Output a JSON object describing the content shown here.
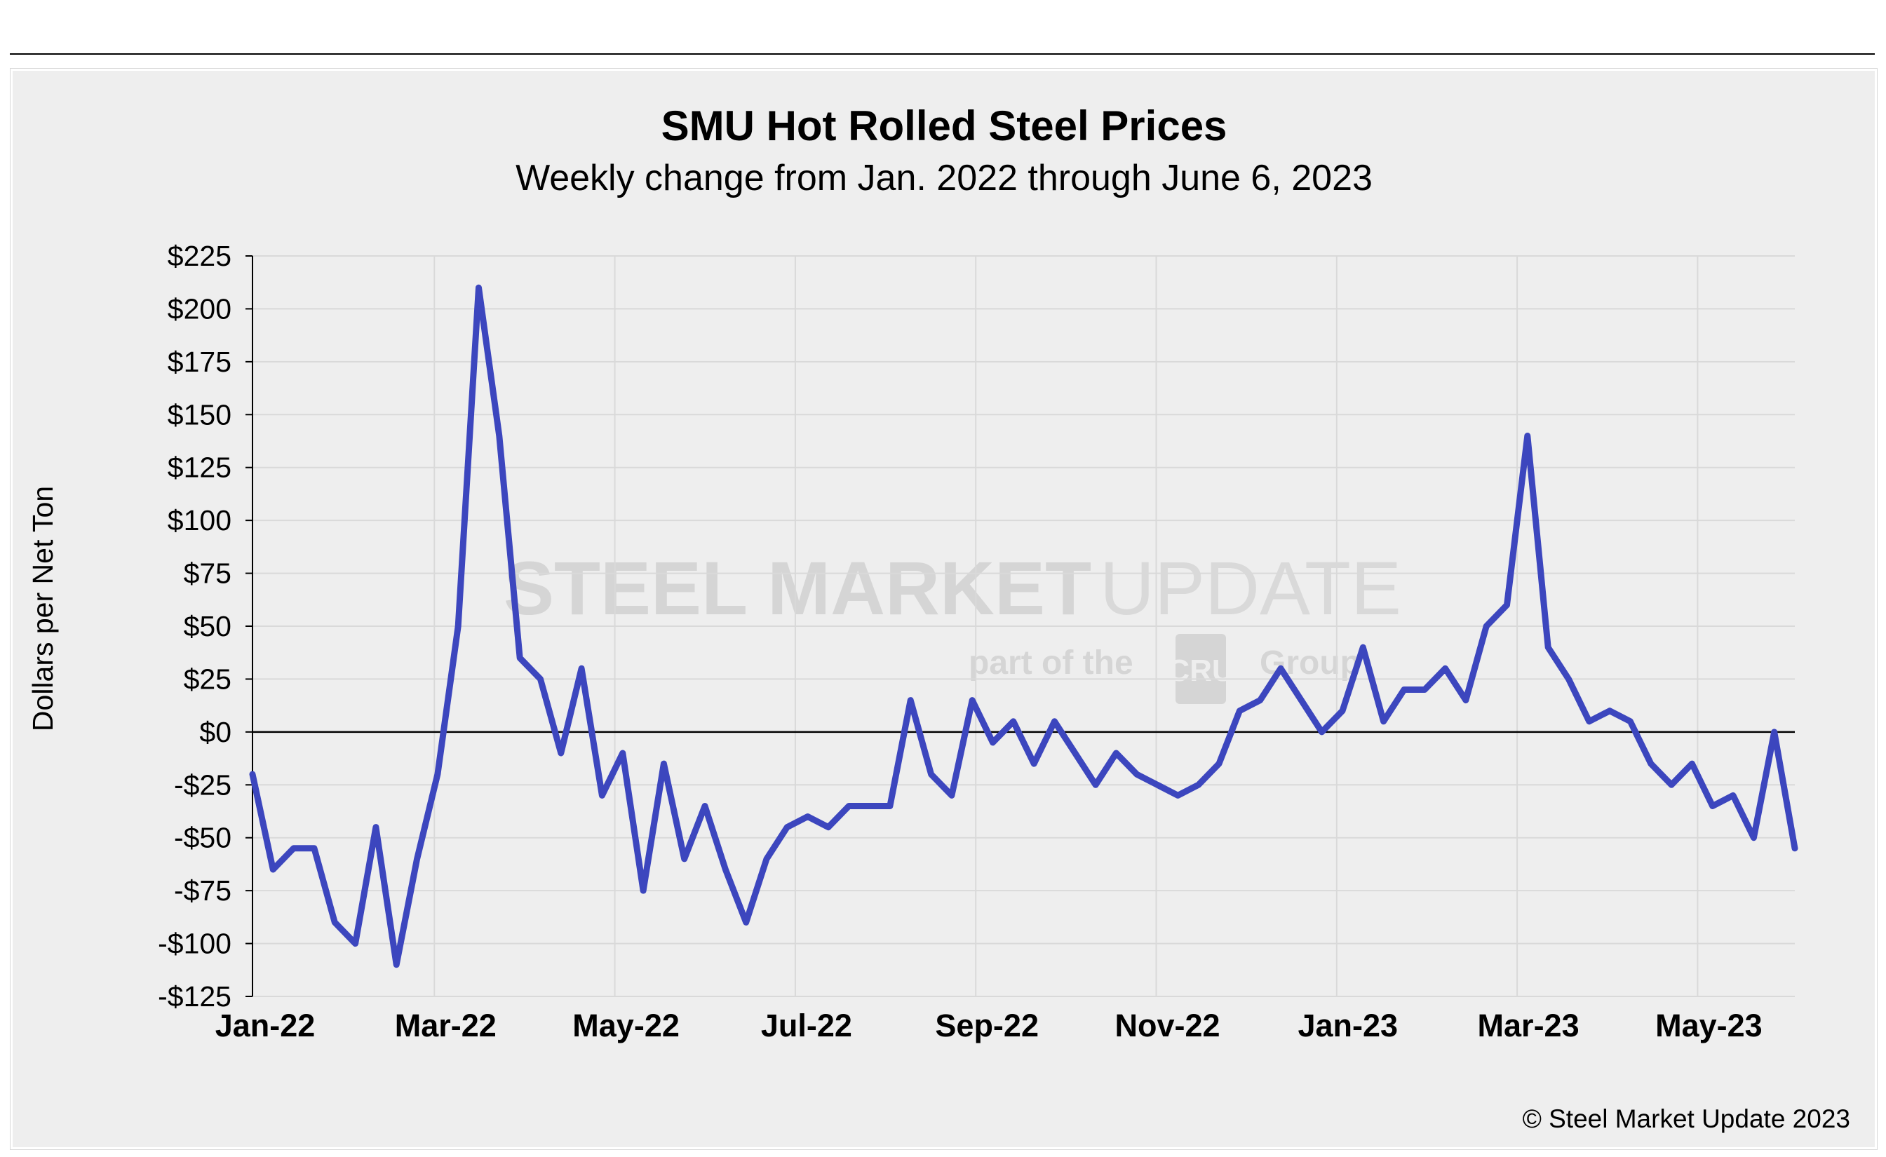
{
  "chart_data": {
    "type": "line",
    "title": "SMU Hot Rolled Steel Prices",
    "subtitle": "Weekly change from Jan. 2022 through June 6, 2023",
    "ylabel": "Dollars per Net Ton",
    "xlabel": "",
    "ylim": [
      -125,
      225
    ],
    "ytick_values": [
      225,
      200,
      175,
      150,
      125,
      100,
      75,
      50,
      25,
      0,
      -25,
      -50,
      -75,
      -100,
      -125
    ],
    "ytick_labels": [
      "$225",
      "$200",
      "$175",
      "$150",
      "$125",
      "$100",
      "$75",
      "$50",
      "$25",
      "$0",
      "-$25",
      "-$50",
      "-$75",
      "-$100",
      "-$125"
    ],
    "xtick_labels": [
      "Jan-22",
      "Mar-22",
      "May-22",
      "Jul-22",
      "Sep-22",
      "Nov-22",
      "Jan-23",
      "Mar-23",
      "May-23"
    ],
    "grid": true,
    "legend": "none",
    "series": [
      {
        "name": "Weekly change",
        "color": "#3c46be",
        "values": [
          -20,
          -65,
          -55,
          -55,
          -90,
          -100,
          -45,
          -110,
          -60,
          -20,
          50,
          210,
          140,
          35,
          25,
          -10,
          30,
          -30,
          -10,
          -75,
          -15,
          -60,
          -35,
          -65,
          -90,
          -60,
          -45,
          -40,
          -45,
          -35,
          -35,
          -35,
          15,
          -20,
          -30,
          15,
          -5,
          5,
          -15,
          5,
          -10,
          -25,
          -10,
          -20,
          -25,
          -30,
          -25,
          -15,
          10,
          15,
          30,
          15,
          0,
          10,
          40,
          5,
          20,
          20,
          30,
          15,
          50,
          60,
          140,
          40,
          25,
          5,
          10,
          5,
          -15,
          -25,
          -15,
          -35,
          -30,
          -50,
          0,
          -55
        ]
      }
    ]
  },
  "watermark": {
    "brand_bold": "STEEL MARKET",
    "brand_light": "UPDATE",
    "tagline_pre": "part of the",
    "logo_text": "CRU",
    "tagline_post": "Group"
  },
  "footer": {
    "copyright": "© Steel Market Update 2023"
  }
}
